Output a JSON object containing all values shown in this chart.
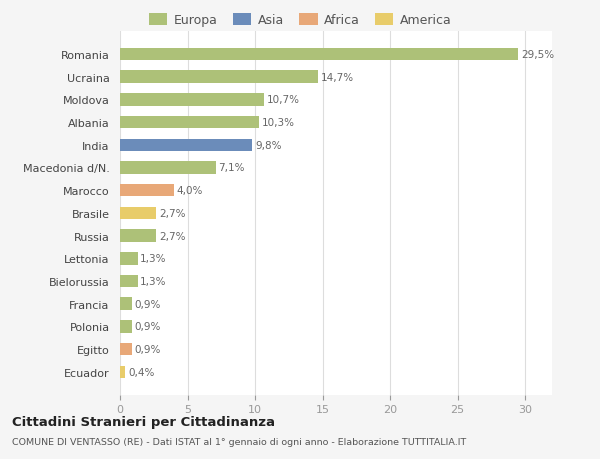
{
  "categories": [
    "Romania",
    "Ucraina",
    "Moldova",
    "Albania",
    "India",
    "Macedonia d/N.",
    "Marocco",
    "Brasile",
    "Russia",
    "Lettonia",
    "Bielorussia",
    "Francia",
    "Polonia",
    "Egitto",
    "Ecuador"
  ],
  "values": [
    29.5,
    14.7,
    10.7,
    10.3,
    9.8,
    7.1,
    4.0,
    2.7,
    2.7,
    1.3,
    1.3,
    0.9,
    0.9,
    0.9,
    0.4
  ],
  "labels": [
    "29,5%",
    "14,7%",
    "10,7%",
    "10,3%",
    "9,8%",
    "7,1%",
    "4,0%",
    "2,7%",
    "2,7%",
    "1,3%",
    "1,3%",
    "0,9%",
    "0,9%",
    "0,9%",
    "0,4%"
  ],
  "continents": [
    "Europa",
    "Europa",
    "Europa",
    "Europa",
    "Asia",
    "Europa",
    "Africa",
    "America",
    "Europa",
    "Europa",
    "Europa",
    "Europa",
    "Europa",
    "Africa",
    "America"
  ],
  "colors": {
    "Europa": "#adc178",
    "Asia": "#6b8cba",
    "Africa": "#e8a878",
    "America": "#e8cc6a"
  },
  "title": "Cittadini Stranieri per Cittadinanza",
  "subtitle": "COMUNE DI VENTASSO (RE) - Dati ISTAT al 1° gennaio di ogni anno - Elaborazione TUTTITALIA.IT",
  "xlim": [
    0,
    32
  ],
  "xticks": [
    0,
    5,
    10,
    15,
    20,
    25,
    30
  ],
  "background_color": "#f5f5f5",
  "plot_bg_color": "#ffffff",
  "grid_color": "#dddddd",
  "label_color": "#666666",
  "tick_color": "#999999",
  "bar_height": 0.55
}
